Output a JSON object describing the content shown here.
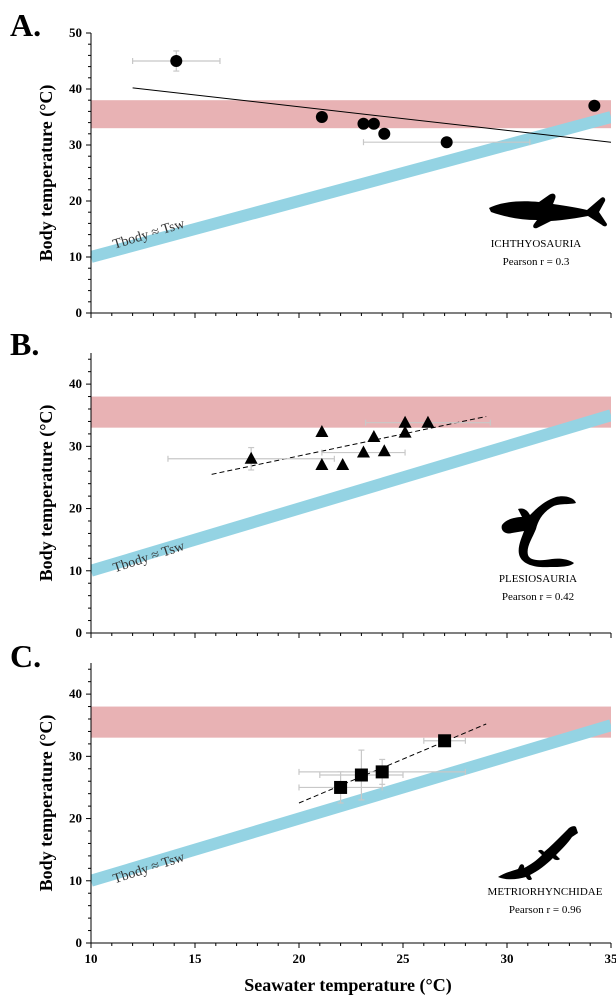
{
  "figure": {
    "x_axis_label": "Seawater temperature (°C)",
    "y_axis_label": "Body temperature (°C)",
    "iso_line_label": "Tbody ≈ Tsw"
  },
  "colors": {
    "isotherm_line": "#94d3e3",
    "band": "#e8b2b4",
    "markers": "#000000",
    "error_bars": "#c8c8c8"
  },
  "chart_data": [
    {
      "panel": "A.",
      "type": "scatter",
      "taxon": "ICHTHYOSAURIA",
      "pearson": "Pearson r = 0.3",
      "marker": "circle",
      "xlim": [
        10,
        35
      ],
      "ylim": [
        0,
        50
      ],
      "yticks": [
        0,
        10,
        20,
        30,
        40,
        50
      ],
      "xticks": [
        10,
        15,
        20,
        25,
        30,
        35
      ],
      "band": [
        33,
        38
      ],
      "points": [
        {
          "x": 14.1,
          "y": 45.0,
          "xerr": 2.1,
          "yerr": 1.8
        },
        {
          "x": 21.1,
          "y": 35.0,
          "xerr": 0,
          "yerr": 0
        },
        {
          "x": 23.1,
          "y": 33.8,
          "xerr": 0,
          "yerr": 0
        },
        {
          "x": 23.6,
          "y": 33.8,
          "xerr": 0,
          "yerr": 0
        },
        {
          "x": 24.1,
          "y": 32.0,
          "xerr": 0,
          "yerr": 0
        },
        {
          "x": 27.1,
          "y": 30.5,
          "xerr": 4.0,
          "yerr": 0
        },
        {
          "x": 34.2,
          "y": 37.0,
          "xerr": 0,
          "yerr": 0.6
        }
      ],
      "trend": {
        "x": [
          12.0,
          35.0
        ],
        "y": [
          40.2,
          30.5
        ],
        "dashed": false
      }
    },
    {
      "panel": "B.",
      "type": "scatter",
      "taxon": "PLESIOSAURIA",
      "pearson": "Pearson r = 0.42",
      "marker": "triangle",
      "xlim": [
        10,
        35
      ],
      "ylim": [
        0,
        45
      ],
      "yticks": [
        0,
        10,
        20,
        30,
        40
      ],
      "xticks": [
        10,
        15,
        20,
        25,
        30,
        35
      ],
      "band": [
        33,
        38
      ],
      "points": [
        {
          "x": 17.7,
          "y": 28.0,
          "xerr": 4.0,
          "yerr": 1.8
        },
        {
          "x": 21.1,
          "y": 32.3,
          "xerr": 0,
          "yerr": 0
        },
        {
          "x": 21.1,
          "y": 27.0,
          "xerr": 0,
          "yerr": 0
        },
        {
          "x": 22.1,
          "y": 27.0,
          "xerr": 0,
          "yerr": 0
        },
        {
          "x": 23.1,
          "y": 29.0,
          "xerr": 2.0,
          "yerr": 0
        },
        {
          "x": 23.6,
          "y": 31.5,
          "xerr": 0,
          "yerr": 0
        },
        {
          "x": 24.1,
          "y": 29.2,
          "xerr": 0,
          "yerr": 0
        },
        {
          "x": 25.1,
          "y": 32.2,
          "xerr": 0,
          "yerr": 0
        },
        {
          "x": 25.1,
          "y": 33.8,
          "xerr": 0,
          "yerr": 0
        },
        {
          "x": 26.2,
          "y": 33.8,
          "xerr": 3.0,
          "yerr": 0
        }
      ],
      "trend": {
        "x": [
          15.8,
          29.0
        ],
        "y": [
          25.5,
          34.8
        ],
        "dashed": true
      }
    },
    {
      "panel": "C.",
      "type": "scatter",
      "taxon": "METRIORHYNCHIDAE",
      "pearson": "Pearson r = 0.96",
      "marker": "square",
      "xlim": [
        10,
        35
      ],
      "ylim": [
        0,
        45
      ],
      "yticks": [
        0,
        10,
        20,
        30,
        40
      ],
      "xticks": [
        10,
        15,
        20,
        25,
        30,
        35
      ],
      "band": [
        33,
        38
      ],
      "points": [
        {
          "x": 22.0,
          "y": 25.0,
          "xerr": 2.0,
          "yerr": 2.5
        },
        {
          "x": 23.0,
          "y": 27.0,
          "xerr": 2.0,
          "yerr": 4.0
        },
        {
          "x": 24.0,
          "y": 27.5,
          "xerr": 4.0,
          "yerr": 2.0
        },
        {
          "x": 27.0,
          "y": 32.5,
          "xerr": 1.0,
          "yerr": 0
        }
      ],
      "trend": {
        "x": [
          20.0,
          29.0
        ],
        "y": [
          22.5,
          35.2
        ],
        "dashed": true
      }
    }
  ]
}
